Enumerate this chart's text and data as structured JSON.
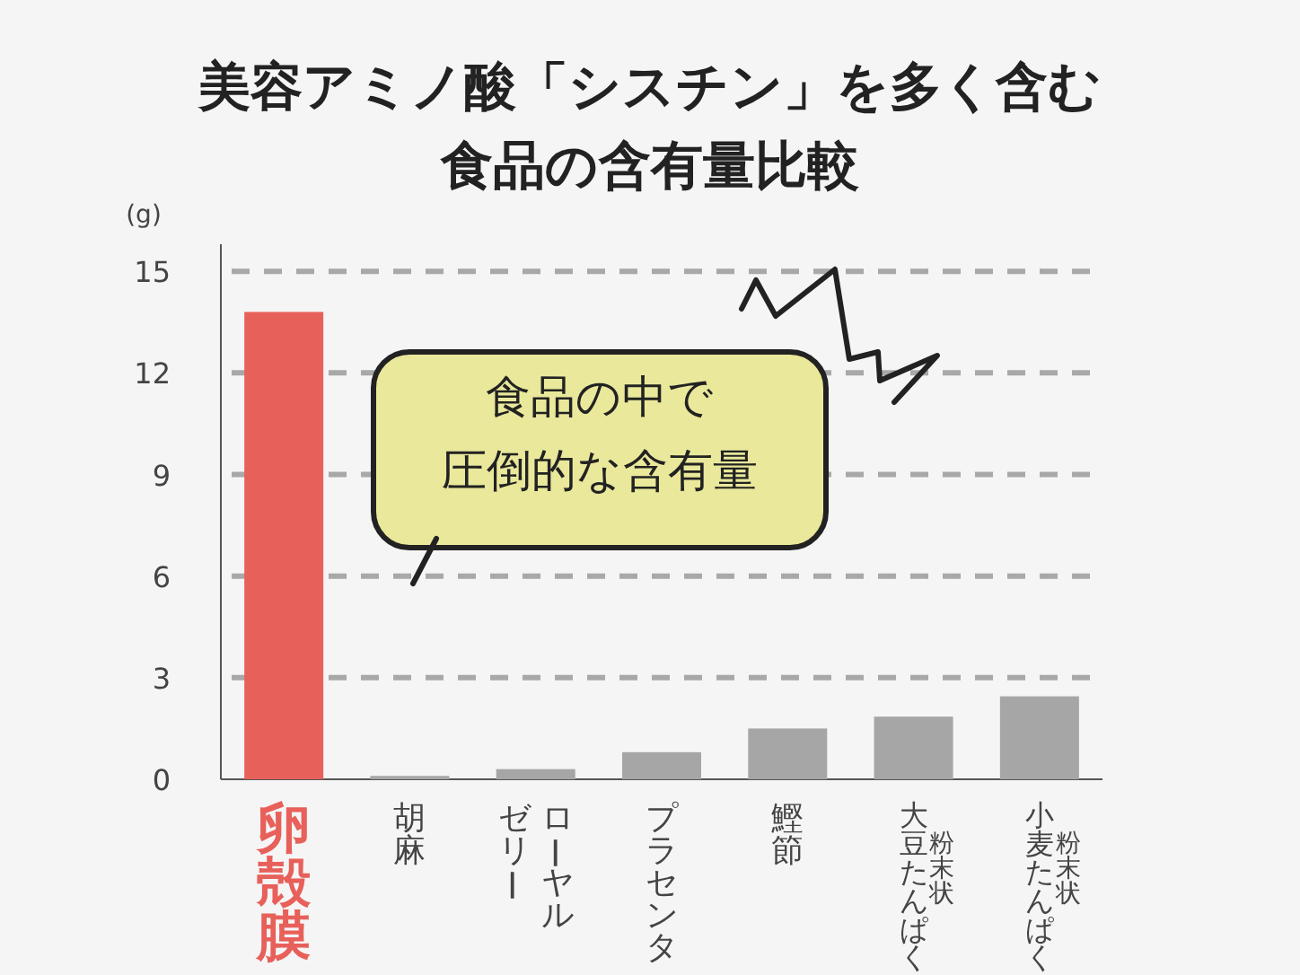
{
  "chart_data": {
    "type": "bar",
    "title": "美容アミノ酸「シスチン」を多く含む食品の含有量比較",
    "ylabel": "(g)",
    "categories": [
      "卵殻膜",
      "胡麻",
      "ローヤルゼリー",
      "プラセンタ",
      "鰹節",
      "大豆たんぱく",
      "小麦たんぱく"
    ],
    "values": [
      13.8,
      0.1,
      0.3,
      0.8,
      1.5,
      1.85,
      2.45
    ],
    "colors": [
      "#e8605a",
      "#a6a6a6",
      "#a6a6a6",
      "#a6a6a6",
      "#a6a6a6",
      "#a6a6a6",
      "#a6a6a6"
    ],
    "ylim": [
      0,
      15.8
    ],
    "yticks": [
      0,
      3,
      6,
      9,
      12,
      15
    ],
    "grid": "y",
    "annotations": [
      "食品の中で",
      "圧倒的な含有量",
      "粉末状",
      "粉末状"
    ]
  }
}
